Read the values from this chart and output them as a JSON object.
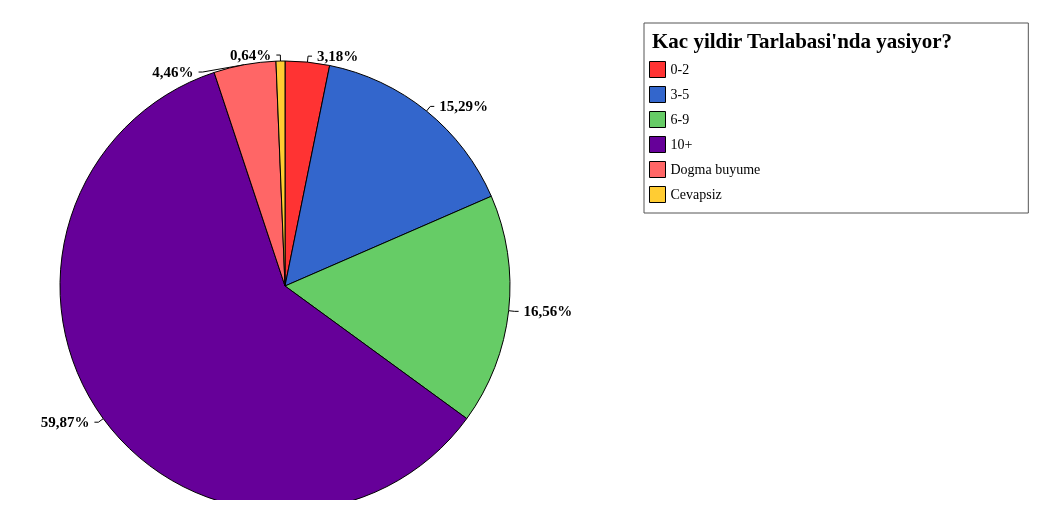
{
  "chart_data": {
    "type": "pie",
    "legend_title": "Kac yildir Tarlabasi'nda yasiyor?",
    "categories": [
      "0-2",
      "3-5",
      "6-9",
      "10+",
      "Dogma buyume",
      "Cevapsiz"
    ],
    "values": [
      3.18,
      15.29,
      16.56,
      59.87,
      4.46,
      0.64
    ],
    "value_labels": [
      "3,18%",
      "15,29%",
      "16,56%",
      "59,87%",
      "4,46%",
      "0,64%"
    ],
    "colors": [
      "#ff3333",
      "#3366cc",
      "#66cc66",
      "#660099",
      "#ff6666",
      "#ffcc33"
    ],
    "legend": "top right"
  }
}
